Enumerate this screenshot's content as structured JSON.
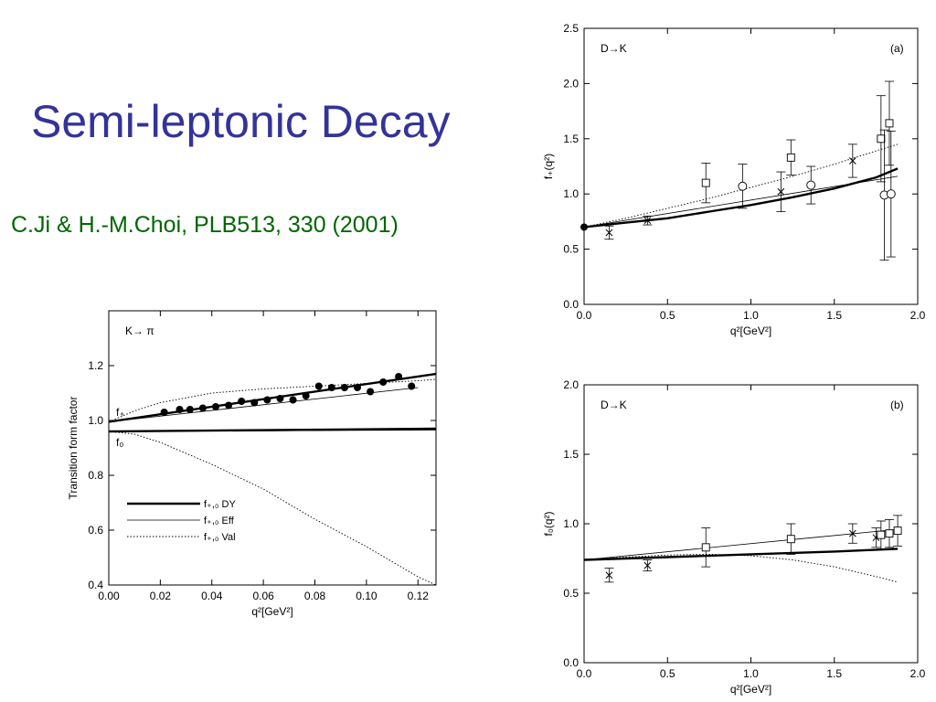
{
  "slide": {
    "title": "Semi-leptonic Decay",
    "citation": "C.Ji & H.-M.Choi, PLB513, 330 (2001)"
  },
  "chart_data": [
    {
      "id": "k-pi",
      "type": "line",
      "process_label": "K→ π",
      "ylabel": "Transition form factor",
      "xlabel": "q²[GeV²]",
      "xlim": [
        0.0,
        0.127
      ],
      "ylim": [
        0.4,
        1.4
      ],
      "xticks": [
        0.0,
        0.02,
        0.04,
        0.06,
        0.08,
        0.1,
        0.12
      ],
      "xtick_labels": [
        "0.00",
        "0.02",
        "0.04",
        "0.06",
        "0.08",
        "0.10",
        "0.12"
      ],
      "yticks": [
        0.4,
        0.6,
        0.8,
        1.0,
        1.2
      ],
      "ytick_labels": [
        "0.4",
        "0.6",
        "0.8",
        "1.0",
        "1.2"
      ],
      "curve_labels": [
        {
          "text": "f₊",
          "x": 0.0,
          "y": 1.03
        },
        {
          "text": "f₀",
          "x": 0.0,
          "y": 0.92
        }
      ],
      "legend": {
        "position": "lower-left",
        "entries": [
          {
            "text": "f₊,₀ DY",
            "style": "thick"
          },
          {
            "text": "f₊,₀ Eff",
            "style": "thin"
          },
          {
            "text": "f₊,₀ Val",
            "style": "dotted"
          }
        ]
      },
      "series": [
        {
          "style": "thick",
          "x": [
            0,
            0.127
          ],
          "y": [
            0.995,
            1.17
          ]
        },
        {
          "style": "thin",
          "x": [
            0,
            0.12
          ],
          "y": [
            0.995,
            1.12
          ]
        },
        {
          "style": "dotted",
          "x": [
            0,
            0.01,
            0.02,
            0.04,
            0.06,
            0.08,
            0.1,
            0.12,
            0.127
          ],
          "y": [
            0.995,
            1.035,
            1.065,
            1.1,
            1.115,
            1.125,
            1.135,
            1.145,
            1.15
          ]
        },
        {
          "style": "thick",
          "x": [
            0,
            0.127
          ],
          "y": [
            0.96,
            0.97
          ]
        },
        {
          "style": "thin",
          "x": [
            0,
            0.127
          ],
          "y": [
            0.96,
            0.965
          ]
        },
        {
          "style": "dotted",
          "x": [
            0,
            0.01,
            0.02,
            0.04,
            0.06,
            0.08,
            0.1,
            0.12,
            0.127
          ],
          "y": [
            0.96,
            0.95,
            0.92,
            0.84,
            0.75,
            0.64,
            0.54,
            0.43,
            0.4
          ]
        }
      ],
      "points": {
        "marker": "filled-circle",
        "x": [
          0.0215,
          0.0275,
          0.0315,
          0.0365,
          0.0415,
          0.0465,
          0.0515,
          0.0565,
          0.0615,
          0.0665,
          0.0715,
          0.0765,
          0.0815,
          0.0865,
          0.0915,
          0.0965,
          0.1015,
          0.1065,
          0.1125,
          0.1175
        ],
        "y": [
          1.03,
          1.04,
          1.04,
          1.045,
          1.05,
          1.055,
          1.07,
          1.065,
          1.075,
          1.08,
          1.075,
          1.09,
          1.125,
          1.12,
          1.12,
          1.12,
          1.105,
          1.14,
          1.16,
          1.125
        ]
      }
    },
    {
      "id": "dk-a",
      "type": "line",
      "process_label": "D→K",
      "panel_label": "(a)",
      "ylabel": "f₊(q²)",
      "xlabel": "q²[GeV²]",
      "xlim": [
        0.0,
        2.0
      ],
      "ylim": [
        0.0,
        2.5
      ],
      "xticks": [
        0.0,
        0.5,
        1.0,
        1.5,
        2.0
      ],
      "xtick_labels": [
        "0.0",
        "0.5",
        "1.0",
        "1.5",
        "2.0"
      ],
      "yticks": [
        0.0,
        0.5,
        1.0,
        1.5,
        2.0,
        2.5
      ],
      "ytick_labels": [
        "0.0",
        "0.5",
        "1.0",
        "1.5",
        "2.0",
        "2.5"
      ],
      "series": [
        {
          "style": "thick",
          "x": [
            0,
            0.25,
            0.5,
            0.75,
            1.0,
            1.25,
            1.5,
            1.75,
            1.88
          ],
          "y": [
            0.7,
            0.74,
            0.78,
            0.84,
            0.9,
            0.97,
            1.05,
            1.15,
            1.23
          ]
        },
        {
          "style": "thin",
          "x": [
            0,
            1.88
          ],
          "y": [
            0.7,
            1.16
          ]
        },
        {
          "style": "dotted",
          "x": [
            0,
            0.25,
            0.5,
            0.75,
            1.0,
            1.25,
            1.5,
            1.75,
            1.88
          ],
          "y": [
            0.7,
            0.78,
            0.87,
            0.96,
            1.06,
            1.16,
            1.27,
            1.39,
            1.45
          ]
        }
      ],
      "points": [
        {
          "marker": "filled-circle",
          "x": 0.0,
          "y": 0.7,
          "err": 0
        },
        {
          "marker": "cross",
          "x": 0.15,
          "y": 0.65,
          "err": 0.06
        },
        {
          "marker": "cross",
          "x": 0.38,
          "y": 0.76,
          "err": 0.04
        },
        {
          "marker": "square",
          "x": 0.73,
          "y": 1.1,
          "err": 0.18
        },
        {
          "marker": "circle",
          "x": 0.95,
          "y": 1.07,
          "err": 0.2
        },
        {
          "marker": "cross",
          "x": 1.18,
          "y": 1.02,
          "err": 0.18
        },
        {
          "marker": "square",
          "x": 1.24,
          "y": 1.33,
          "err": 0.16
        },
        {
          "marker": "circle",
          "x": 1.36,
          "y": 1.08,
          "err": 0.17
        },
        {
          "marker": "cross",
          "x": 1.61,
          "y": 1.3,
          "err": 0.15
        },
        {
          "marker": "square",
          "x": 1.78,
          "y": 1.5,
          "err": 0.39
        },
        {
          "marker": "circle",
          "x": 1.8,
          "y": 0.99,
          "err": 0.59
        },
        {
          "marker": "square",
          "x": 1.83,
          "y": 1.64,
          "err": 0.38
        },
        {
          "marker": "circle",
          "x": 1.84,
          "y": 1.0,
          "err": 0.57
        }
      ]
    },
    {
      "id": "dk-b",
      "type": "line",
      "process_label": "D→K",
      "panel_label": "(b)",
      "ylabel": "f₀(q²)",
      "xlabel": "q²[GeV²]",
      "xlim": [
        0.0,
        2.0
      ],
      "ylim": [
        0.0,
        2.0
      ],
      "xticks": [
        0.0,
        0.5,
        1.0,
        1.5,
        2.0
      ],
      "xtick_labels": [
        "0.0",
        "0.5",
        "1.0",
        "1.5",
        "2.0"
      ],
      "yticks": [
        0.0,
        0.5,
        1.0,
        1.5,
        2.0
      ],
      "ytick_labels": [
        "0.0",
        "0.5",
        "1.0",
        "1.5",
        "2.0"
      ],
      "series": [
        {
          "style": "thick",
          "x": [
            0,
            0.5,
            1.0,
            1.5,
            1.88
          ],
          "y": [
            0.74,
            0.76,
            0.78,
            0.8,
            0.82
          ]
        },
        {
          "style": "thin",
          "x": [
            0,
            1.88
          ],
          "y": [
            0.74,
            0.96
          ]
        },
        {
          "style": "dotted",
          "x": [
            0,
            0.25,
            0.5,
            0.75,
            1.0,
            1.25,
            1.5,
            1.75,
            1.88
          ],
          "y": [
            0.74,
            0.76,
            0.775,
            0.78,
            0.77,
            0.74,
            0.69,
            0.62,
            0.58
          ]
        }
      ],
      "points": [
        {
          "marker": "cross",
          "x": 0.15,
          "y": 0.63,
          "err": 0.05
        },
        {
          "marker": "cross",
          "x": 0.38,
          "y": 0.7,
          "err": 0.04
        },
        {
          "marker": "square",
          "x": 0.73,
          "y": 0.83,
          "err": 0.14
        },
        {
          "marker": "square",
          "x": 1.24,
          "y": 0.89,
          "err": 0.11
        },
        {
          "marker": "cross",
          "x": 1.61,
          "y": 0.93,
          "err": 0.07
        },
        {
          "marker": "cross",
          "x": 1.75,
          "y": 0.9,
          "err": 0.07
        },
        {
          "marker": "square",
          "x": 1.78,
          "y": 0.92,
          "err": 0.1
        },
        {
          "marker": "square",
          "x": 1.83,
          "y": 0.93,
          "err": 0.1
        },
        {
          "marker": "square",
          "x": 1.88,
          "y": 0.95,
          "err": 0.11
        }
      ]
    }
  ]
}
